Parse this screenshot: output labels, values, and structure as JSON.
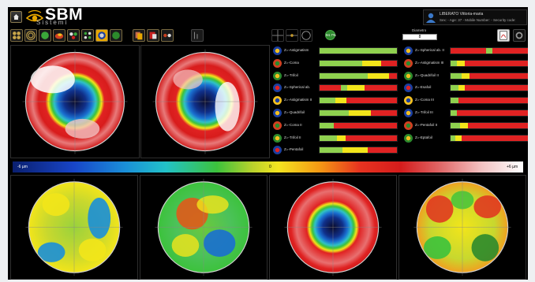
{
  "header": {
    "brand": "SBM",
    "brand_sub": "Sistemi"
  },
  "patient": {
    "name": "LIBERATO Vittoria-maria",
    "info": "Sex: - Age: 37 - Mobile Number: - Security code:"
  },
  "toolbar": {
    "number_label": "Diametro",
    "number_value": "8",
    "percent": "94.7%"
  },
  "scale": {
    "left": "-6 µm",
    "mid": "0",
    "right": "+6 µm"
  },
  "colors": {
    "accent": "#e8a700",
    "bar_green": "#8fd14f",
    "bar_yellow": "#f2e51a",
    "bar_red": "#e02222"
  },
  "zernike": {
    "left": [
      {
        "label": "Z=-Astigmatism",
        "segs": [
          [
            "g",
            100
          ]
        ],
        "icon": "astig-icon"
      },
      {
        "label": "Z=-Coma",
        "segs": [
          [
            "g",
            55
          ],
          [
            "y",
            25
          ],
          [
            "r",
            20
          ]
        ],
        "icon": "coma-icon"
      },
      {
        "label": "Z=-Trifoil",
        "segs": [
          [
            "g",
            62
          ],
          [
            "y",
            28
          ],
          [
            "r",
            10
          ]
        ],
        "icon": "trifoil-icon"
      },
      {
        "label": "Z=-Spherical ab.",
        "segs": [
          [
            "r",
            28
          ],
          [
            "g",
            8
          ],
          [
            "y",
            22
          ],
          [
            "r",
            42
          ]
        ],
        "icon": "spherical-icon"
      },
      {
        "label": "Z=-Astigmatism II",
        "segs": [
          [
            "g",
            20
          ],
          [
            "y",
            15
          ],
          [
            "r",
            65
          ]
        ],
        "icon": "astig-icon"
      },
      {
        "label": "Z=-Quadrifoil",
        "segs": [
          [
            "g",
            38
          ],
          [
            "y",
            28
          ],
          [
            "r",
            34
          ]
        ],
        "icon": "quadrifoil-icon"
      },
      {
        "label": "Z=-Coma II",
        "segs": [
          [
            "g",
            18
          ],
          [
            "r",
            82
          ]
        ],
        "icon": "coma-icon"
      },
      {
        "label": "Z=-Trifoil II",
        "segs": [
          [
            "g",
            22
          ],
          [
            "y",
            12
          ],
          [
            "r",
            66
          ]
        ],
        "icon": "trifoil-icon"
      },
      {
        "label": "Z=-Pentafoil",
        "segs": [
          [
            "g",
            30
          ],
          [
            "y",
            32
          ],
          [
            "r",
            38
          ]
        ],
        "icon": "pentafoil-icon"
      }
    ],
    "right": [
      {
        "label": "Z=-Spherical ab. II",
        "segs": [
          [
            "r",
            46
          ],
          [
            "g",
            8
          ],
          [
            "r",
            46
          ]
        ],
        "icon": "spherical-icon"
      },
      {
        "label": "Z=-Astigmatism III",
        "segs": [
          [
            "g",
            8
          ],
          [
            "y",
            10
          ],
          [
            "r",
            82
          ]
        ],
        "icon": "astig-icon"
      },
      {
        "label": "Z=-Quadrifoil II",
        "segs": [
          [
            "g",
            14
          ],
          [
            "y",
            10
          ],
          [
            "r",
            76
          ]
        ],
        "icon": "quadrifoil-icon"
      },
      {
        "label": "Z=-Esafoil",
        "segs": [
          [
            "g",
            10
          ],
          [
            "y",
            8
          ],
          [
            "r",
            82
          ]
        ],
        "icon": "esafoil-icon"
      },
      {
        "label": "Z=-Coma III",
        "segs": [
          [
            "g",
            10
          ],
          [
            "r",
            90
          ]
        ],
        "icon": "coma-icon"
      },
      {
        "label": "Z=-Trifoil III",
        "segs": [
          [
            "g",
            8
          ],
          [
            "r",
            92
          ]
        ],
        "icon": "trifoil-icon"
      },
      {
        "label": "Z=-Pentafoil II",
        "segs": [
          [
            "g",
            12
          ],
          [
            "y",
            10
          ],
          [
            "r",
            78
          ]
        ],
        "icon": "pentafoil-icon"
      },
      {
        "label": "Z=-Eptafoil",
        "segs": [
          [
            "g",
            6
          ],
          [
            "y",
            8
          ],
          [
            "r",
            86
          ]
        ],
        "icon": "eptafoil-icon"
      }
    ]
  }
}
